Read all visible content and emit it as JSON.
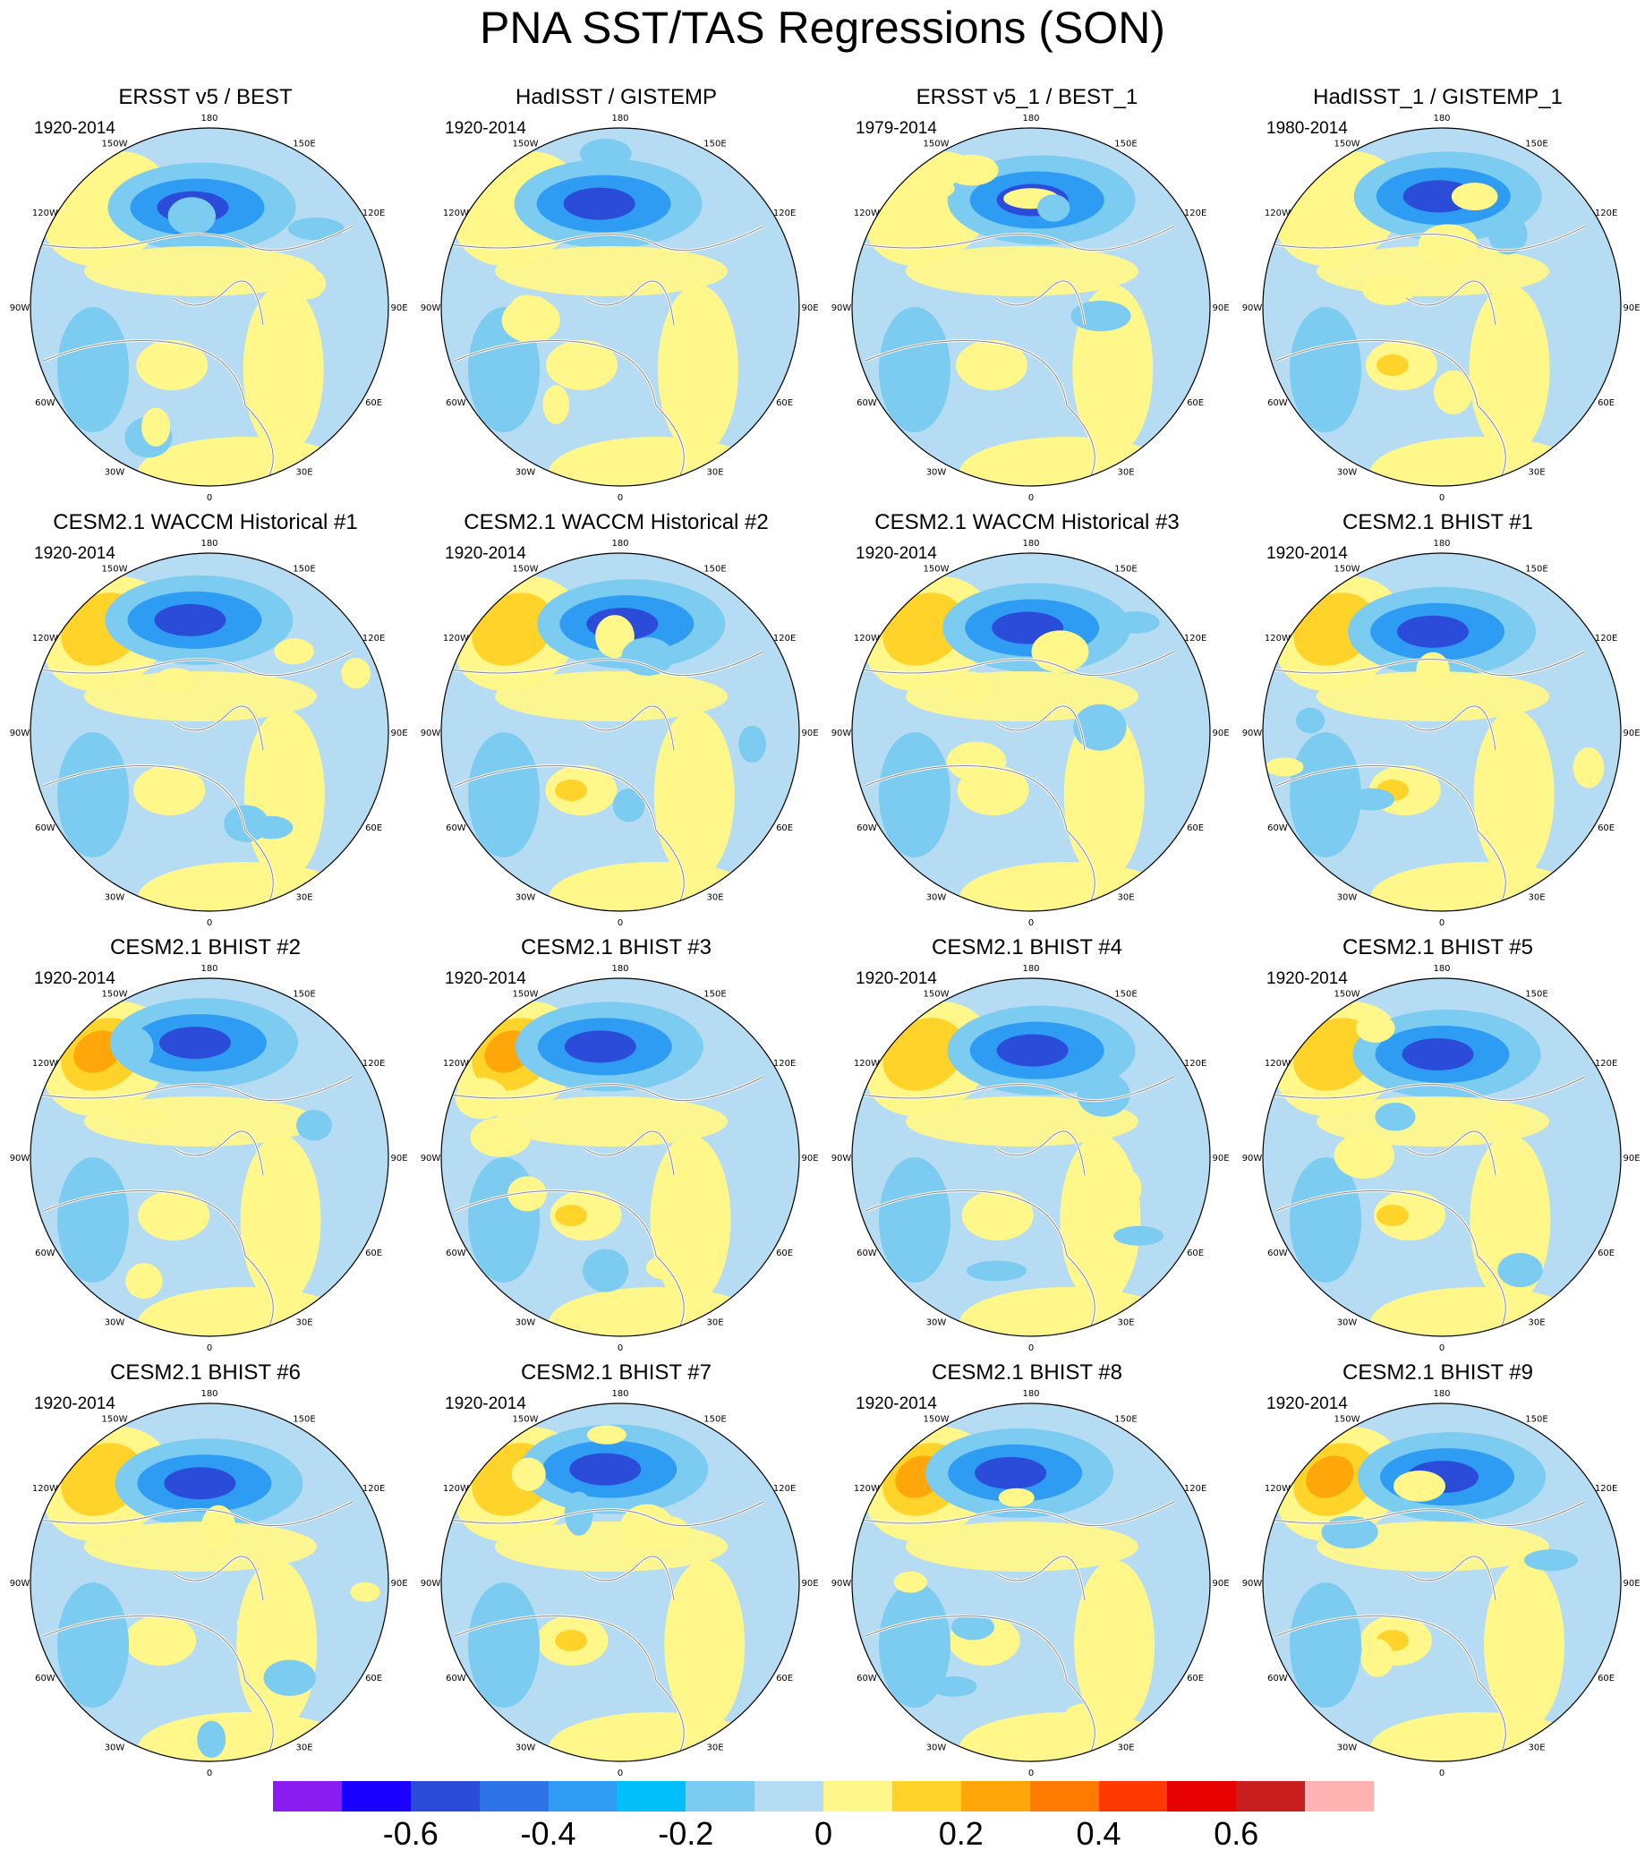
{
  "title": "PNA SST/TAS Regressions (SON)",
  "palette": {
    "land_outline": "#888888",
    "background_fill": "#b5dcf2",
    "pos1": "#fff78a",
    "pos2": "#ffd32a",
    "pos3": "#ffa70a",
    "neg1": "#7ccbf1",
    "neg2": "#2e9cf3",
    "neg3": "#2a4cd8"
  },
  "longitude_labels": [
    "180",
    "150E",
    "120E",
    "90E",
    "60E",
    "30E",
    "0",
    "30W",
    "60W",
    "90W",
    "120W",
    "150W"
  ],
  "panels": [
    {
      "title": "ERSST v5 / BEST",
      "period": "1920-2014"
    },
    {
      "title": "HadISST / GISTEMP",
      "period": "1920-2014"
    },
    {
      "title": "ERSST v5_1 / BEST_1",
      "period": "1979-2014"
    },
    {
      "title": "HadISST_1 / GISTEMP_1",
      "period": "1980-2014"
    },
    {
      "title": "CESM2.1 WACCM Historical #1",
      "period": "1920-2014"
    },
    {
      "title": "CESM2.1 WACCM Historical #2",
      "period": "1920-2014"
    },
    {
      "title": "CESM2.1 WACCM Historical #3",
      "period": "1920-2014"
    },
    {
      "title": "CESM2.1 BHIST #1",
      "period": "1920-2014"
    },
    {
      "title": "CESM2.1 BHIST #2",
      "period": "1920-2014"
    },
    {
      "title": "CESM2.1 BHIST #3",
      "period": "1920-2014"
    },
    {
      "title": "CESM2.1 BHIST #4",
      "period": "1920-2014"
    },
    {
      "title": "CESM2.1 BHIST #5",
      "period": "1920-2014"
    },
    {
      "title": "CESM2.1 BHIST #6",
      "period": "1920-2014"
    },
    {
      "title": "CESM2.1 BHIST #7",
      "period": "1920-2014"
    },
    {
      "title": "CESM2.1 BHIST #8",
      "period": "1920-2014"
    },
    {
      "title": "CESM2.1 BHIST #9",
      "period": "1920-2014"
    }
  ],
  "colorbar": {
    "colors": [
      "#8a1cf0",
      "#1a00ff",
      "#2a4cd8",
      "#2f74e6",
      "#2e9cf3",
      "#00bff9",
      "#7ccbf1",
      "#b5dcf2",
      "#fff78a",
      "#ffd32a",
      "#ffa70a",
      "#ff7a00",
      "#ff3a00",
      "#e60000",
      "#c81e1e",
      "#ffb3b3"
    ],
    "tick_labels": [
      "-0.6",
      "-0.4",
      "-0.2",
      "0",
      "0.2",
      "0.4",
      "0.6"
    ]
  }
}
